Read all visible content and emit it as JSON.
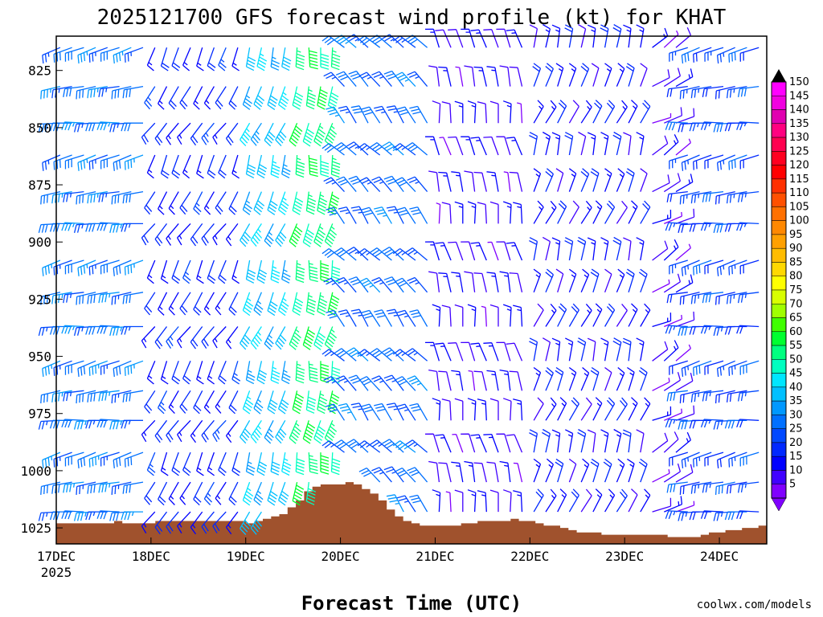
{
  "chart_data": {
    "type": "wind-barb-time-height",
    "title": "2025121700 GFS forecast wind profile (kt) for KHAT",
    "xlabel": "Forecast Time (UTC)",
    "credit": "coolwx.com/models",
    "x_ticks": [
      {
        "label": "17DEC",
        "sub": "2025",
        "hour": 0
      },
      {
        "label": "18DEC",
        "sub": "",
        "hour": 24
      },
      {
        "label": "19DEC",
        "sub": "",
        "hour": 48
      },
      {
        "label": "20DEC",
        "sub": "",
        "hour": 72
      },
      {
        "label": "21DEC",
        "sub": "",
        "hour": 96
      },
      {
        "label": "22DEC",
        "sub": "",
        "hour": 120
      },
      {
        "label": "23DEC",
        "sub": "",
        "hour": 144
      },
      {
        "label": "24DEC",
        "sub": "",
        "hour": 168
      }
    ],
    "x_range_hours": [
      0,
      180
    ],
    "barb_interval_hours": 3,
    "y_ticks": [
      {
        "label": "825",
        "value": 825
      },
      {
        "label": "850",
        "value": 850
      },
      {
        "label": "875",
        "value": 875
      },
      {
        "label": "900",
        "value": 900
      },
      {
        "label": "925",
        "value": 925
      },
      {
        "label": "950",
        "value": 950
      },
      {
        "label": "975",
        "value": 975
      },
      {
        "label": "1000",
        "value": 1000
      },
      {
        "label": "1025",
        "value": 1025
      }
    ],
    "y_range_mb": [
      810,
      1032
    ],
    "levels_mb": [
      815,
      832,
      848,
      862,
      878,
      892,
      908,
      922,
      937,
      952,
      965,
      978,
      992,
      1005,
      1018
    ],
    "colorbar": {
      "labels": [
        "150",
        "145",
        "140",
        "135",
        "130",
        "125",
        "120",
        "115",
        "110",
        "105",
        "100",
        "95",
        "90",
        "85",
        "80",
        "75",
        "70",
        "65",
        "60",
        "55",
        "50",
        "45",
        "40",
        "35",
        "30",
        "25",
        "20",
        "15",
        "10",
        "5"
      ],
      "colors": [
        "#ff00ff",
        "#f000e0",
        "#e000b0",
        "#ff0080",
        "#ff0050",
        "#ff0020",
        "#ff0000",
        "#ff3000",
        "#ff5000",
        "#ff7000",
        "#ff8800",
        "#ffa000",
        "#ffbc00",
        "#ffd800",
        "#ffff00",
        "#d8ff00",
        "#a0ff00",
        "#40ff00",
        "#00ff30",
        "#00ff80",
        "#00ffc0",
        "#00e6ff",
        "#00c0ff",
        "#0098ff",
        "#0070ff",
        "#0048ff",
        "#0028ff",
        "#0000ff",
        "#4000ff",
        "#8000ff"
      ]
    },
    "surface_pressure_mb": [
      1023,
      1023,
      1023,
      1023,
      1023,
      1023,
      1023,
      1022,
      1023,
      1023,
      1023,
      1023,
      1022,
      1022,
      1022,
      1022,
      1022,
      1022,
      1022,
      1022,
      1022,
      1022,
      1022,
      1023,
      1022,
      1021,
      1020,
      1019,
      1016,
      1013,
      1009,
      1007,
      1006,
      1006,
      1006,
      1005,
      1006,
      1008,
      1010,
      1013,
      1017,
      1020,
      1022,
      1023,
      1024,
      1024,
      1024,
      1024,
      1024,
      1023,
      1023,
      1022,
      1022,
      1022,
      1022,
      1021,
      1022,
      1022,
      1023,
      1024,
      1024,
      1025,
      1026,
      1027,
      1027,
      1027,
      1028,
      1028,
      1028,
      1028,
      1028,
      1028,
      1028,
      1028,
      1029,
      1029,
      1029,
      1029,
      1028,
      1027,
      1027,
      1026,
      1026,
      1025,
      1025,
      1024
    ],
    "wind_regimes": [
      {
        "from_hour": 0,
        "to_hour": 24,
        "dir_deg": 260,
        "speed_kt": 30
      },
      {
        "from_hour": 24,
        "to_hour": 48,
        "dir_deg": 210,
        "speed_kt": 18
      },
      {
        "from_hour": 48,
        "to_hour": 60,
        "dir_deg": 200,
        "speed_kt": 40
      },
      {
        "from_hour": 60,
        "to_hour": 72,
        "dir_deg": 190,
        "speed_kt": 55
      },
      {
        "from_hour": 72,
        "to_hour": 96,
        "dir_deg": 320,
        "speed_kt": 28
      },
      {
        "from_hour": 96,
        "to_hour": 120,
        "dir_deg": 350,
        "speed_kt": 12
      },
      {
        "from_hour": 120,
        "to_hour": 150,
        "dir_deg": 20,
        "speed_kt": 16
      },
      {
        "from_hour": 150,
        "to_hour": 160,
        "dir_deg": 60,
        "speed_kt": 10
      },
      {
        "from_hour": 160,
        "to_hour": 180,
        "dir_deg": 260,
        "speed_kt": 24
      }
    ]
  }
}
